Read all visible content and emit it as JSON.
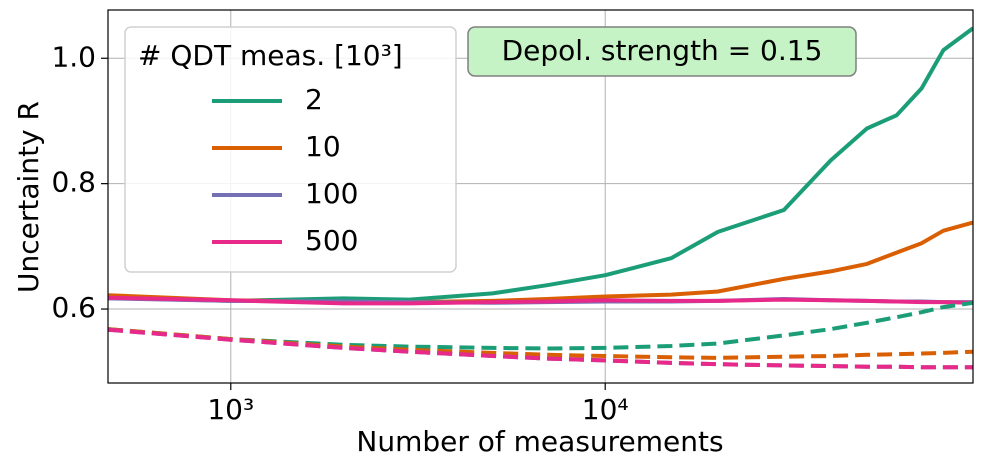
{
  "chart_data": {
    "type": "line",
    "x_label": "Number of measurements",
    "y_label": "Uncertainty R",
    "legend_title": "# QDT meas. [10³]",
    "legend": "upper left",
    "annotation": "Depol. strength = 0.15",
    "log_x": true,
    "grid": true,
    "xlim": [
      470,
      96000
    ],
    "ylim": [
      0.482,
      1.077
    ],
    "xticks": [
      {
        "value": 1000,
        "label": "10³"
      },
      {
        "value": 10000,
        "label": "10⁴"
      }
    ],
    "yticks": [
      0.6,
      0.8,
      {
        "value": 1.0,
        "label": "1.0"
      }
    ],
    "x": [
      470,
      1000,
      2000,
      3000,
      5000,
      7000,
      10000,
      15000,
      20000,
      30000,
      40000,
      50000,
      60000,
      70000,
      80000,
      96000
    ],
    "series": [
      {
        "name": "2",
        "color": "#1b9e77",
        "values": [
          0.618,
          0.613,
          0.617,
          0.615,
          0.625,
          0.638,
          0.654,
          0.681,
          0.723,
          0.758,
          0.837,
          0.888,
          0.909,
          0.952,
          1.013,
          1.048
        ]
      },
      {
        "name": "10",
        "color": "#d95f02",
        "values": [
          0.622,
          0.614,
          0.611,
          0.611,
          0.613,
          0.616,
          0.62,
          0.623,
          0.628,
          0.648,
          0.66,
          0.672,
          0.69,
          0.705,
          0.725,
          0.738
        ]
      },
      {
        "name": "100",
        "color": "#7570b3",
        "values": [
          0.617,
          0.613,
          0.612,
          0.611,
          0.61,
          0.611,
          0.612,
          0.612,
          0.613,
          0.616,
          0.614,
          0.613,
          0.612,
          0.612,
          0.611,
          0.611
        ]
      },
      {
        "name": "500",
        "color": "#e7298a",
        "values": [
          0.618,
          0.614,
          0.609,
          0.609,
          0.611,
          0.612,
          0.614,
          0.613,
          0.613,
          0.615,
          0.614,
          0.613,
          0.612,
          0.611,
          0.611,
          0.61
        ]
      },
      {
        "color": "#1b9e77",
        "dashed": true,
        "values": [
          0.568,
          0.552,
          0.543,
          0.54,
          0.538,
          0.537,
          0.538,
          0.541,
          0.545,
          0.558,
          0.568,
          0.578,
          0.587,
          0.595,
          0.603,
          0.61
        ]
      },
      {
        "color": "#d95f02",
        "dashed": true,
        "values": [
          0.568,
          0.552,
          0.54,
          0.535,
          0.53,
          0.527,
          0.525,
          0.523,
          0.522,
          0.524,
          0.525,
          0.527,
          0.528,
          0.529,
          0.53,
          0.532
        ]
      },
      {
        "color": "#7570b3",
        "dashed": true,
        "values": [
          0.567,
          0.551,
          0.538,
          0.532,
          0.525,
          0.521,
          0.518,
          0.514,
          0.512,
          0.51,
          0.509,
          0.508,
          0.508,
          0.507,
          0.507,
          0.507
        ]
      },
      {
        "color": "#e7298a",
        "dashed": true,
        "values": [
          0.567,
          0.551,
          0.538,
          0.532,
          0.525,
          0.521,
          0.518,
          0.514,
          0.512,
          0.51,
          0.509,
          0.508,
          0.508,
          0.507,
          0.507,
          0.507
        ]
      }
    ]
  }
}
